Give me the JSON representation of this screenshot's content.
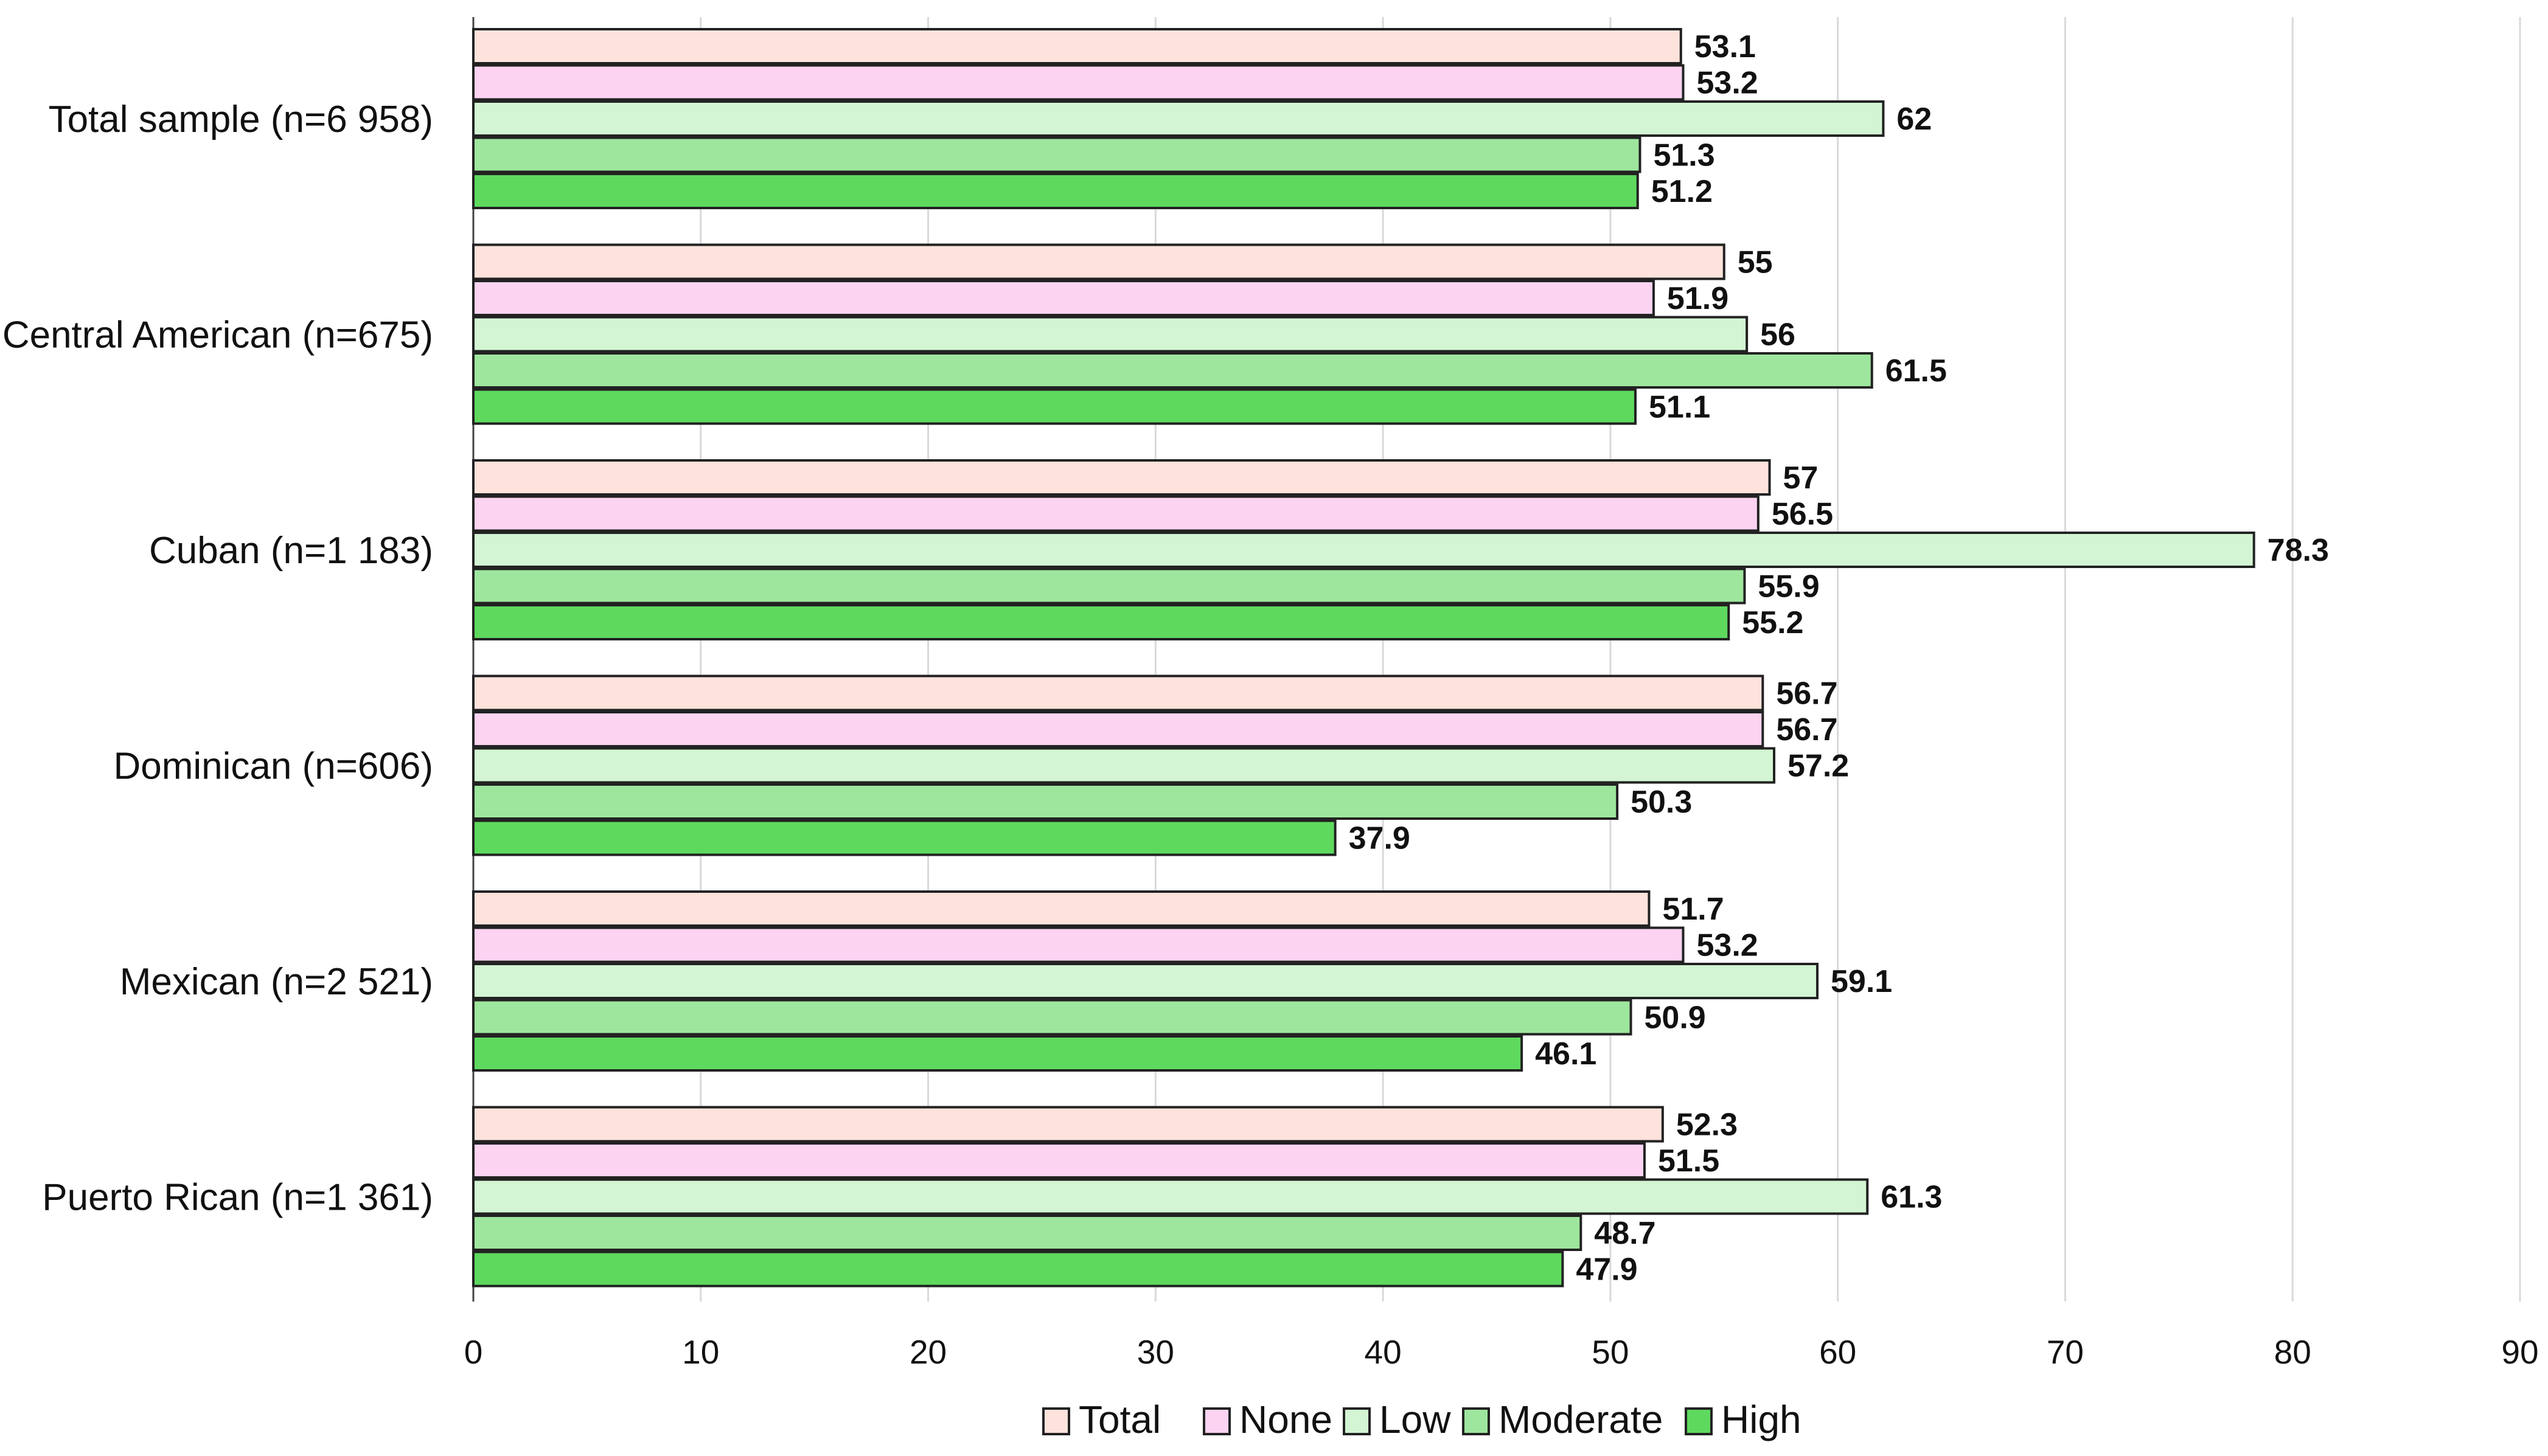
{
  "chart_data": {
    "type": "bar",
    "orientation": "horizontal",
    "categories": [
      "Total sample (n=6 958)",
      "Central American (n=675)",
      "Cuban (n=1 183)",
      "Dominican (n=606)",
      "Mexican (n=2 521)",
      "Puerto Rican (n=1 361)"
    ],
    "series": [
      {
        "name": "Total",
        "color": "#fde3dc",
        "values": [
          53.1,
          55,
          57,
          56.7,
          51.7,
          52.3
        ],
        "labels": [
          "53.1",
          "55",
          "57",
          "56.7",
          "51.7",
          "52.3"
        ]
      },
      {
        "name": "None",
        "color": "#fcd3f1",
        "values": [
          53.2,
          51.9,
          56.5,
          56.7,
          53.2,
          51.5
        ],
        "labels": [
          "53.2",
          "51.9",
          "56.5",
          "56.7",
          "53.2",
          "51.5"
        ]
      },
      {
        "name": "Low",
        "color": "#d3f5d3",
        "values": [
          62,
          56,
          78.3,
          57.2,
          59.1,
          61.3
        ],
        "labels": [
          "62",
          "56",
          "78.3",
          "57.2",
          "59.1",
          "61.3"
        ]
      },
      {
        "name": "Moderate",
        "color": "#9ee69e",
        "values": [
          51.3,
          61.5,
          55.9,
          50.3,
          50.9,
          48.7
        ],
        "labels": [
          "51.3",
          "61.5",
          "55.9",
          "50.3",
          "50.9",
          "48.7"
        ]
      },
      {
        "name": "High",
        "color": "#5ed95e",
        "values": [
          51.2,
          51.1,
          55.2,
          37.9,
          46.1,
          47.9
        ],
        "labels": [
          "51.2",
          "51.1",
          "55.2",
          "37.9",
          "46.1",
          "47.9"
        ]
      }
    ],
    "xlim": [
      0,
      90
    ],
    "xticks": [
      "0",
      "10",
      "20",
      "30",
      "40",
      "50",
      "60",
      "70",
      "80",
      "90"
    ],
    "grid": true,
    "legend_position": "bottom",
    "title": "",
    "xlabel": "",
    "ylabel": ""
  }
}
